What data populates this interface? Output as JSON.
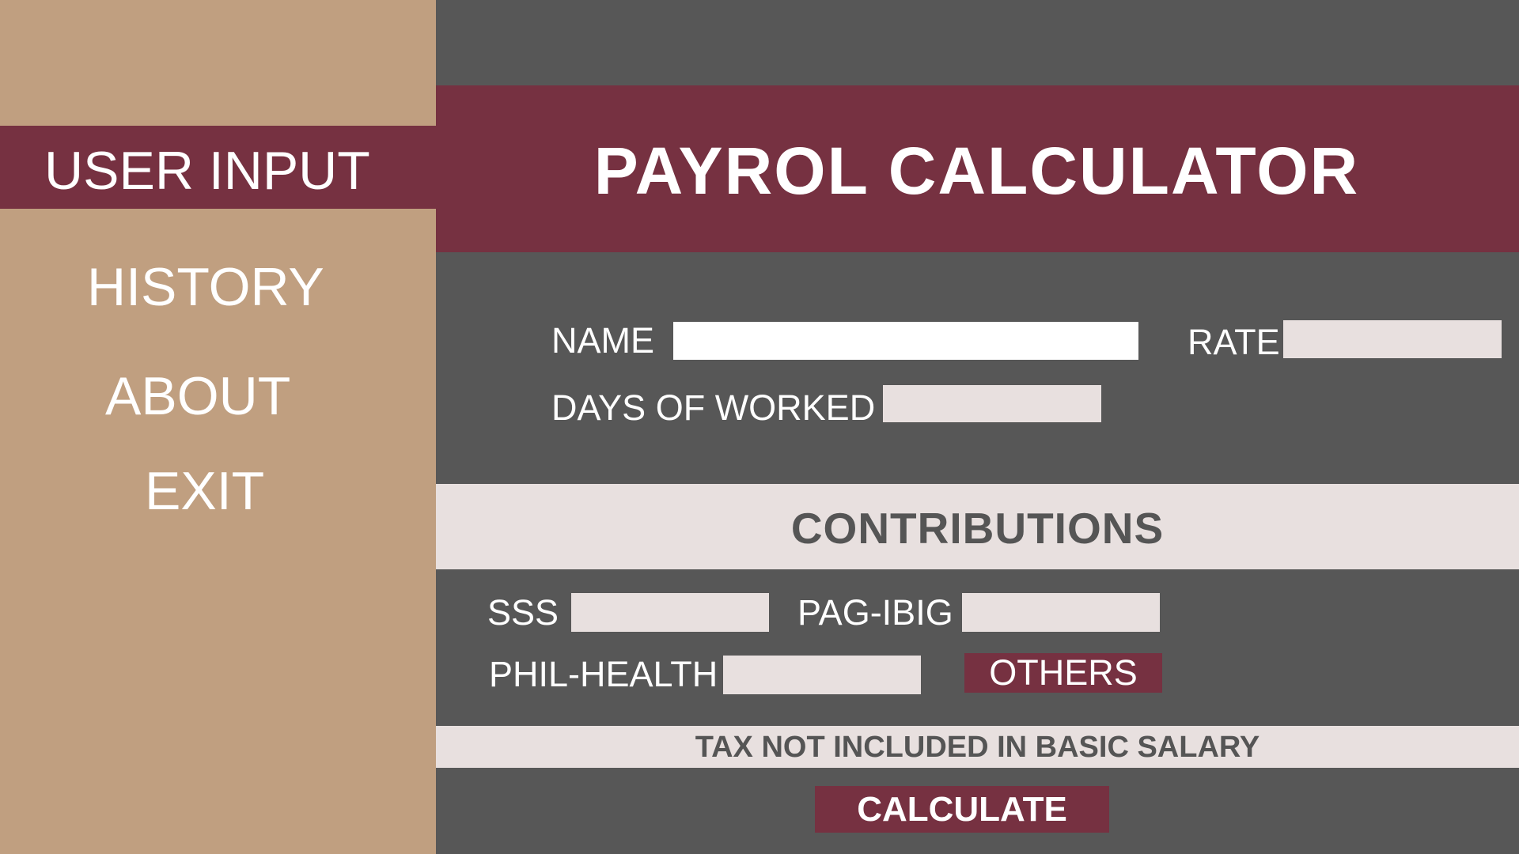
{
  "sidebar": {
    "items": [
      {
        "label": "USER INPUT"
      },
      {
        "label": "HISTORY"
      },
      {
        "label": "ABOUT"
      },
      {
        "label": "EXIT"
      }
    ]
  },
  "header": {
    "title": "PAYROL CALCULATOR"
  },
  "form": {
    "name_label": "NAME",
    "name_value": "",
    "rate_label": "RATE",
    "rate_value": "",
    "days_label": "DAYS OF WORKED",
    "days_value": ""
  },
  "contributions": {
    "heading": "CONTRIBUTIONS",
    "sss_label": "SSS",
    "sss_value": "",
    "pagibig_label": "PAG-IBIG",
    "pagibig_value": "",
    "philhealth_label": "PHIL-HEALTH",
    "philhealth_value": "",
    "others_label": "OTHERS"
  },
  "notice": "TAX NOT INCLUDED IN BASIC SALARY",
  "calculate_label": "CALCULATE",
  "colors": {
    "sidebar": "#c09f80",
    "accent": "#763141",
    "background": "#575757",
    "band": "#e8e0df"
  }
}
